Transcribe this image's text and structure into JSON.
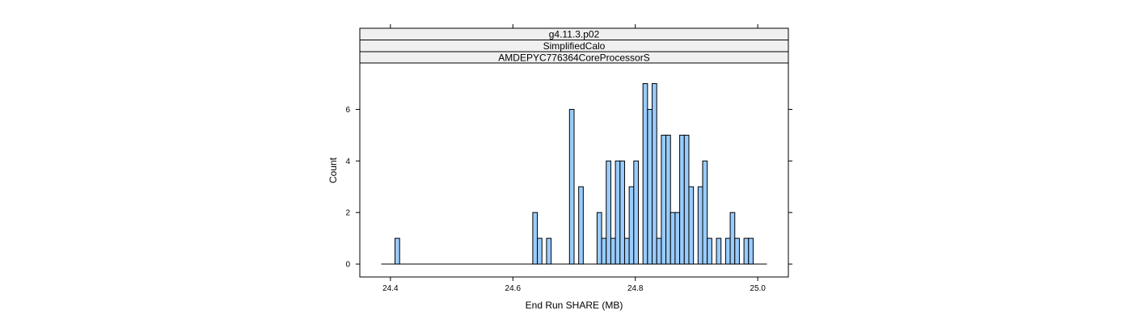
{
  "chart_data": {
    "type": "histogram",
    "strips": [
      "g4.11.3.p02",
      "SimplifiedCalo",
      "AMDEPYC776364CoreProcessorS"
    ],
    "xlabel": "End Run SHARE (MB)",
    "ylabel": "Count",
    "xlim": [
      24.35,
      25.05
    ],
    "ylim": [
      -0.5,
      7.8
    ],
    "x_ticks": [
      "24.4",
      "24.6",
      "24.8",
      "25.0"
    ],
    "x_tick_values": [
      24.4,
      24.6,
      24.8,
      25.0
    ],
    "y_ticks": [
      "0",
      "2",
      "4",
      "6"
    ],
    "y_tick_values": [
      0,
      2,
      4,
      6
    ],
    "bin_start": 24.385,
    "bin_end": 25.015,
    "bin_width": 0.0075,
    "bins": [
      {
        "x0": 24.4075,
        "x1": 24.415,
        "count": 1
      },
      {
        "x0": 24.6325,
        "x1": 24.64,
        "count": 2
      },
      {
        "x0": 24.64,
        "x1": 24.6475,
        "count": 1
      },
      {
        "x0": 24.655,
        "x1": 24.6625,
        "count": 1
      },
      {
        "x0": 24.6925,
        "x1": 24.7,
        "count": 6
      },
      {
        "x0": 24.7075,
        "x1": 24.715,
        "count": 3
      },
      {
        "x0": 24.7375,
        "x1": 24.745,
        "count": 2
      },
      {
        "x0": 24.745,
        "x1": 24.7525,
        "count": 1
      },
      {
        "x0": 24.7525,
        "x1": 24.76,
        "count": 4
      },
      {
        "x0": 24.76,
        "x1": 24.7675,
        "count": 1
      },
      {
        "x0": 24.7675,
        "x1": 24.775,
        "count": 4
      },
      {
        "x0": 24.775,
        "x1": 24.7825,
        "count": 4
      },
      {
        "x0": 24.7825,
        "x1": 24.79,
        "count": 1
      },
      {
        "x0": 24.79,
        "x1": 24.7975,
        "count": 3
      },
      {
        "x0": 24.7975,
        "x1": 24.805,
        "count": 4
      },
      {
        "x0": 24.8125,
        "x1": 24.82,
        "count": 7
      },
      {
        "x0": 24.82,
        "x1": 24.8275,
        "count": 6
      },
      {
        "x0": 24.8275,
        "x1": 24.835,
        "count": 7
      },
      {
        "x0": 24.835,
        "x1": 24.8425,
        "count": 1
      },
      {
        "x0": 24.8425,
        "x1": 24.85,
        "count": 5
      },
      {
        "x0": 24.85,
        "x1": 24.8575,
        "count": 5
      },
      {
        "x0": 24.8575,
        "x1": 24.865,
        "count": 2
      },
      {
        "x0": 24.865,
        "x1": 24.8725,
        "count": 2
      },
      {
        "x0": 24.8725,
        "x1": 24.88,
        "count": 5
      },
      {
        "x0": 24.88,
        "x1": 24.8875,
        "count": 5
      },
      {
        "x0": 24.8875,
        "x1": 24.895,
        "count": 3
      },
      {
        "x0": 24.9025,
        "x1": 24.91,
        "count": 3
      },
      {
        "x0": 24.91,
        "x1": 24.9175,
        "count": 4
      },
      {
        "x0": 24.9175,
        "x1": 24.925,
        "count": 1
      },
      {
        "x0": 24.9325,
        "x1": 24.94,
        "count": 1
      },
      {
        "x0": 24.9475,
        "x1": 24.955,
        "count": 1
      },
      {
        "x0": 24.955,
        "x1": 24.9625,
        "count": 2
      },
      {
        "x0": 24.9625,
        "x1": 24.97,
        "count": 1
      },
      {
        "x0": 24.9775,
        "x1": 24.985,
        "count": 1
      },
      {
        "x0": 24.985,
        "x1": 24.9925,
        "count": 1
      }
    ],
    "colors": {
      "bar_fill": "#99ccff",
      "bar_stroke": "#000000",
      "strip_fill": "#f0f0f0",
      "frame": "#000000"
    }
  }
}
